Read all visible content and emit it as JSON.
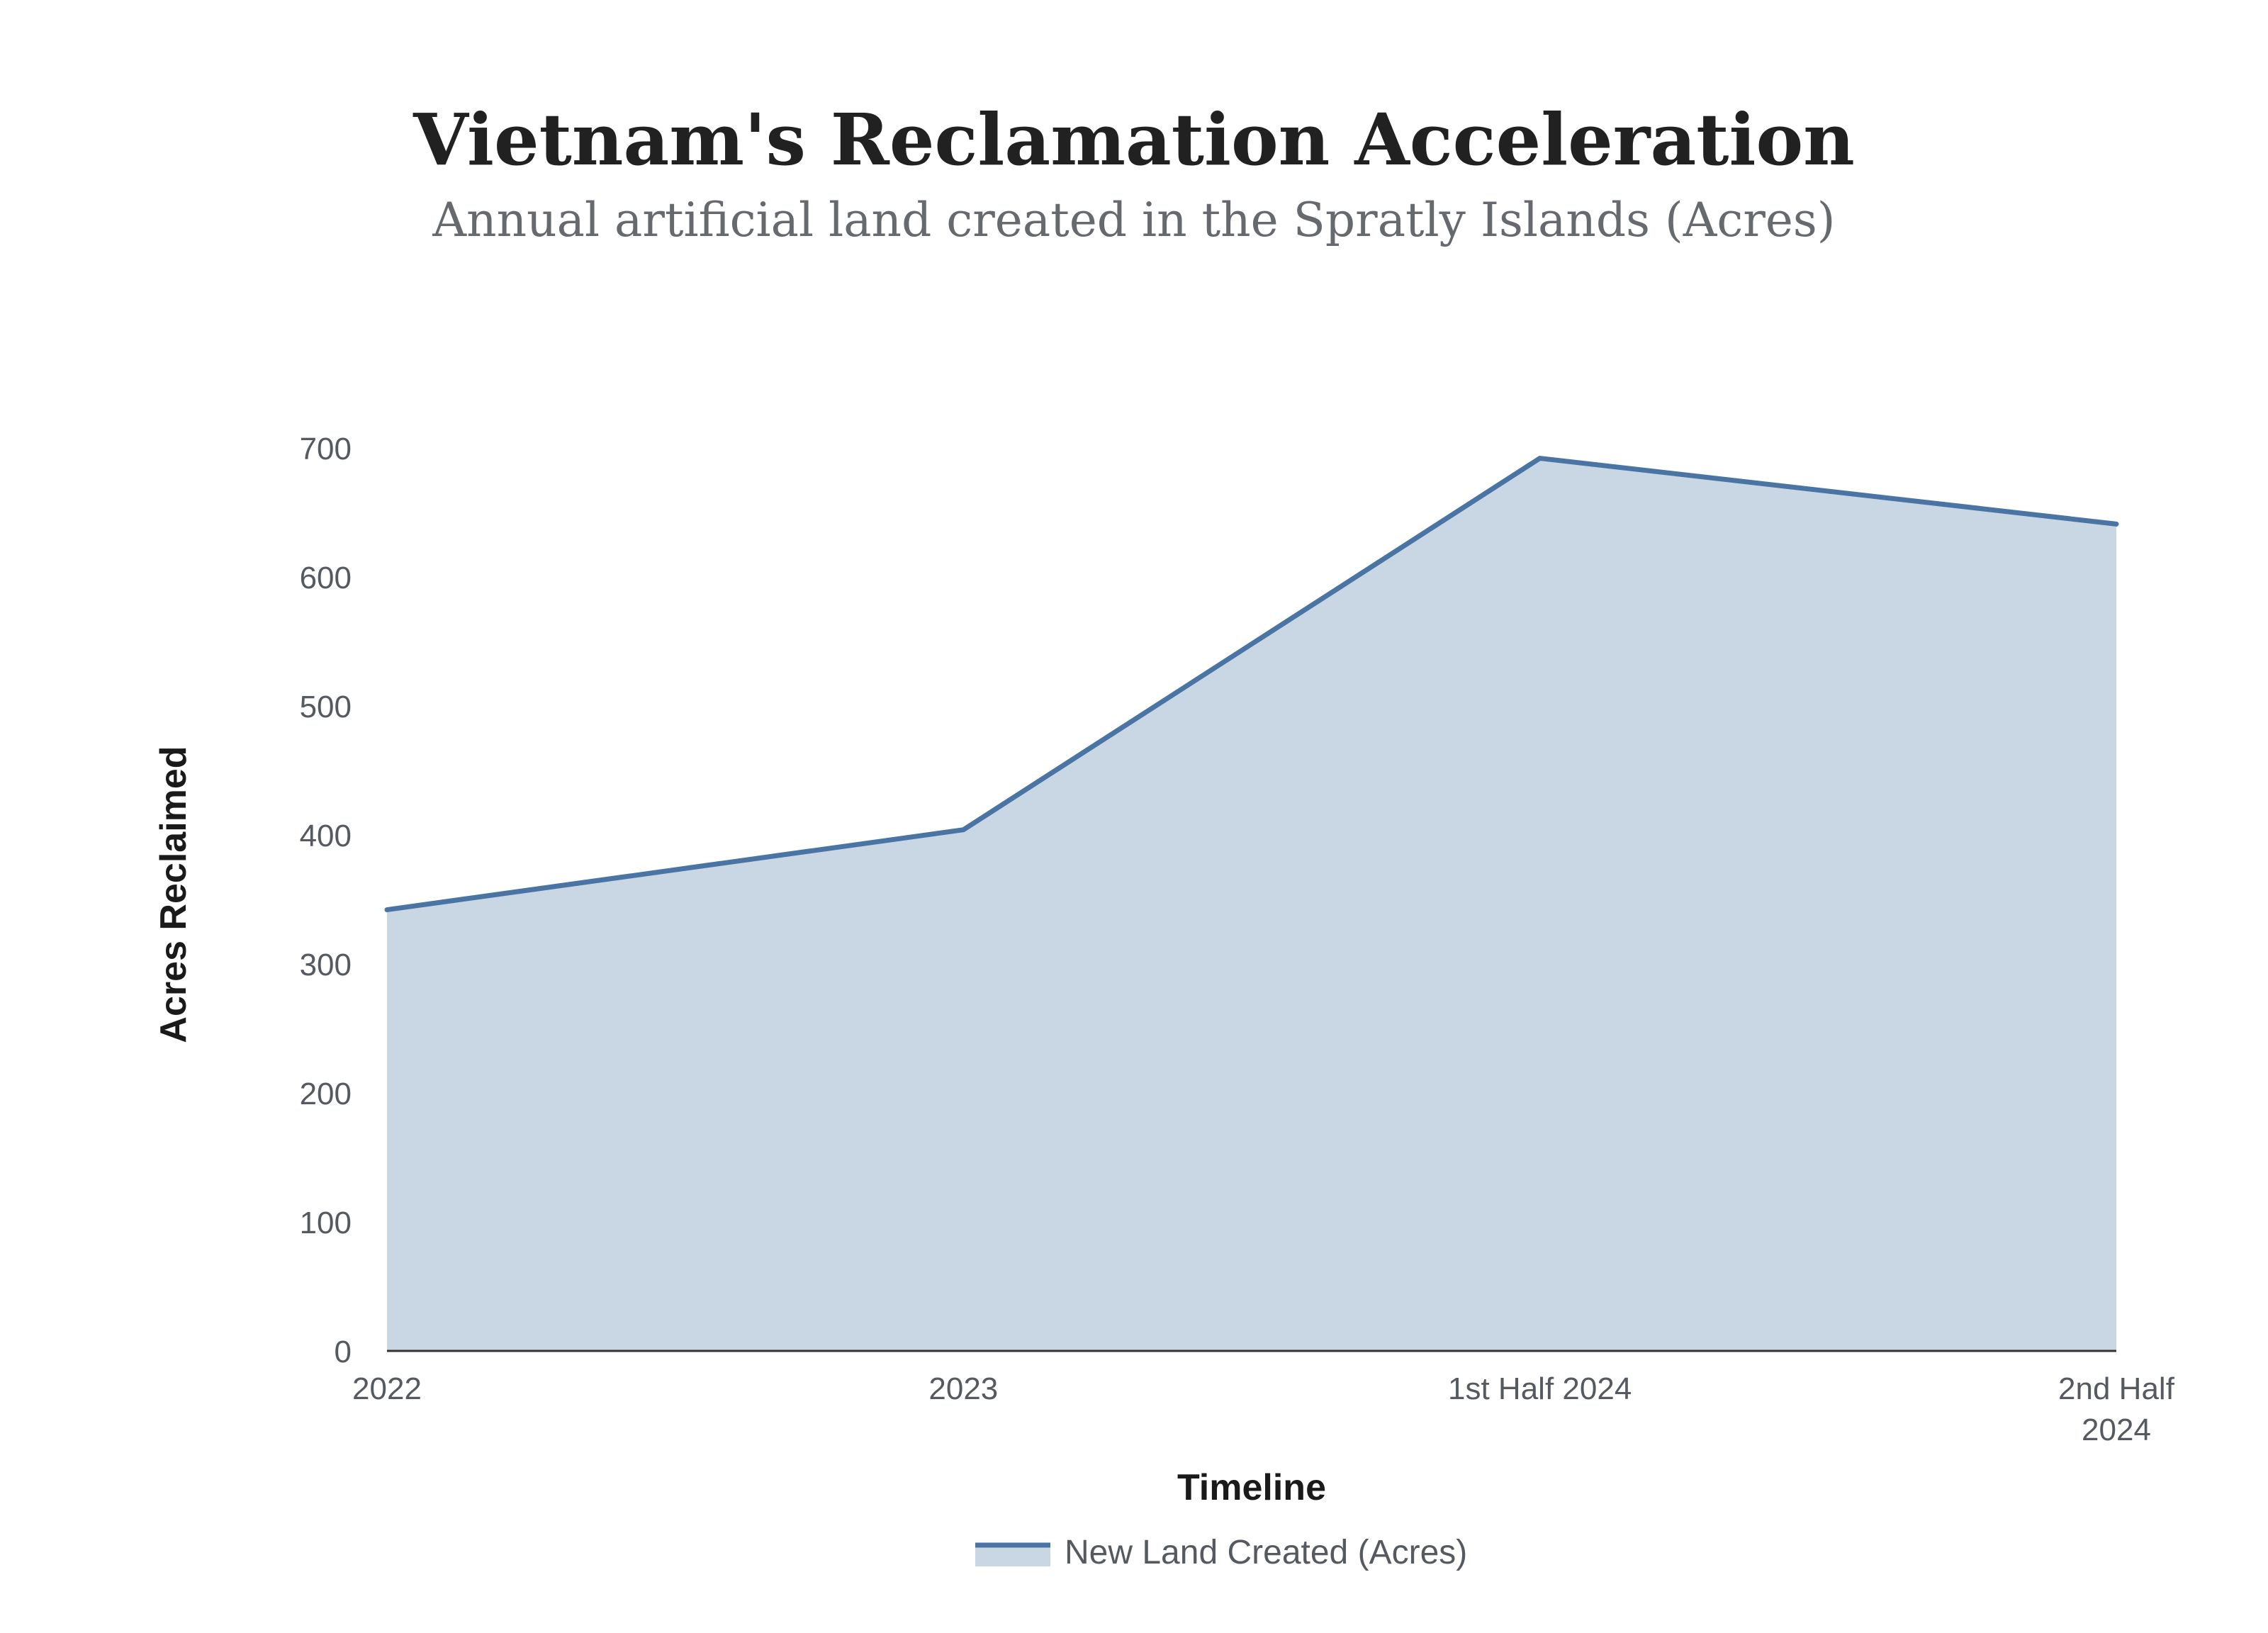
{
  "chart_data": {
    "type": "area",
    "title": "Vietnam's Reclamation Acceleration",
    "subtitle": "Annual artificial land created in the Spratly Islands (Acres)",
    "xlabel": "Timeline",
    "ylabel": "Acres Reclaimed",
    "categories": [
      [
        "2022"
      ],
      [
        "2023"
      ],
      [
        "1st Half 2024"
      ],
      [
        "2nd Half",
        "2024"
      ]
    ],
    "series": [
      {
        "name": "New Land Created (Acres)",
        "values": [
          342,
          404,
          692,
          641
        ],
        "color": "#4a74a3",
        "fill": "#c9d7e5"
      }
    ],
    "ylim": [
      0,
      700
    ],
    "yticks": [
      0,
      100,
      200,
      300,
      400,
      500,
      600,
      700
    ],
    "grid": false,
    "legend": "bottom-center"
  }
}
